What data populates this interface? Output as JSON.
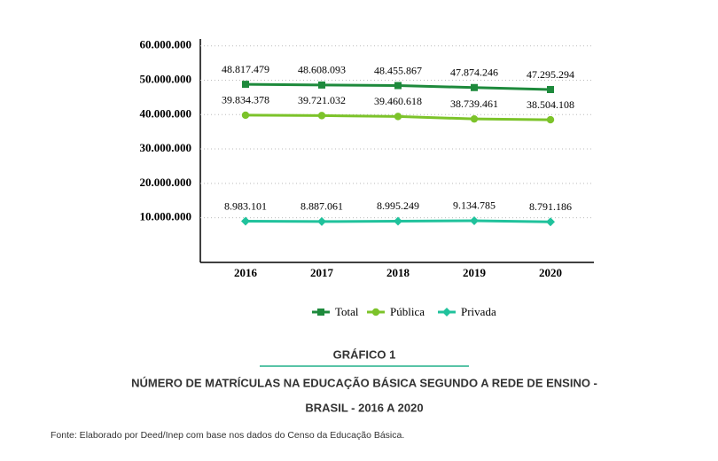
{
  "chart_data": {
    "type": "line",
    "categories": [
      "2016",
      "2017",
      "2018",
      "2019",
      "2020"
    ],
    "series": [
      {
        "name": "Total",
        "color": "#1e8a3c",
        "marker": "square",
        "values": [
          48817479,
          48608093,
          48455867,
          47874246,
          47295294
        ],
        "value_labels": [
          "48.817.479",
          "48.608.093",
          "48.455.867",
          "47.874.246",
          "47.295.294"
        ]
      },
      {
        "name": "Pública",
        "color": "#7cc32a",
        "marker": "circle",
        "values": [
          39834378,
          39721032,
          39460618,
          38739461,
          38504108
        ],
        "value_labels": [
          "39.834.378",
          "39.721.032",
          "39.460.618",
          "38.739.461",
          "38.504.108"
        ]
      },
      {
        "name": "Privada",
        "color": "#20c29c",
        "marker": "diamond",
        "values": [
          8983101,
          8887061,
          8995249,
          9134785,
          8791186
        ],
        "value_labels": [
          "8.983.101",
          "8.887.061",
          "8.995.249",
          "9.134.785",
          "8.791.186"
        ]
      }
    ],
    "ylim": [
      -3000000,
      62000000
    ],
    "yticks": [
      {
        "value": 10000000,
        "label": "10.000.000"
      },
      {
        "value": 20000000,
        "label": "20.000.000"
      },
      {
        "value": 30000000,
        "label": "30.000.000"
      },
      {
        "value": 40000000,
        "label": "40.000.000"
      },
      {
        "value": 50000000,
        "label": "50.000.000"
      },
      {
        "value": 60000000,
        "label": "60.000.000"
      }
    ],
    "grid": true
  },
  "caption": {
    "label": "GRÁFICO 1",
    "title_lines": [
      "NÚMERO DE MATRÍCULAS NA EDUCAÇÃO BÁSICA SEGUNDO A REDE DE ENSINO -",
      "BRASIL - 2016 A 2020"
    ],
    "source": "Fonte: Elaborado por Deed/Inep com base nos dados do Censo da Educação Básica."
  }
}
